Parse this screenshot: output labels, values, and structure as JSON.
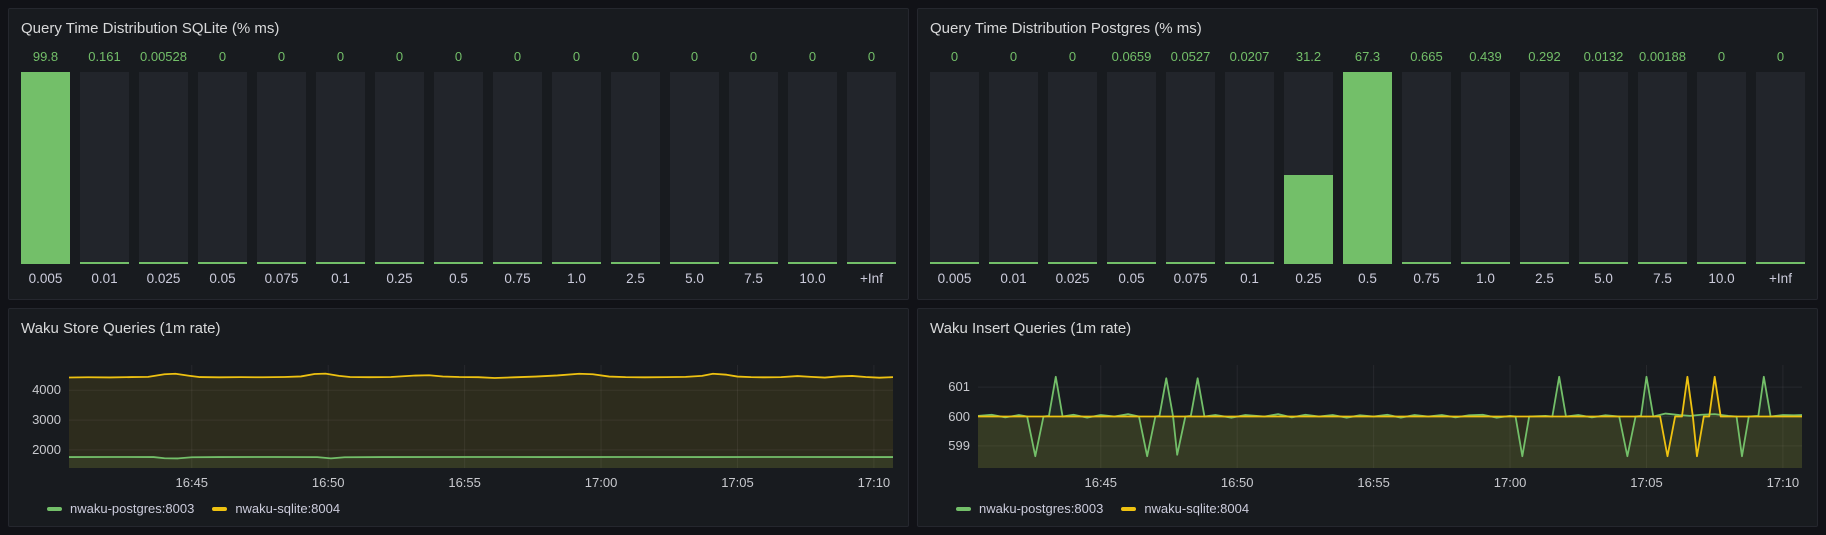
{
  "theme": {
    "page_bg": "#111217",
    "panel_bg": "#181b1f",
    "panel_border": "#25272e",
    "title_color": "#d8d9da",
    "axis_text": "#c8c9ce",
    "grid_color": "rgba(204,204,220,0.08)",
    "bar_background": "#22252b",
    "green": "#73bf69",
    "yellow": "#eec211"
  },
  "chart_data": [
    {
      "id": "query-time-sqlite",
      "type": "bar",
      "title": "Query Time Distribution SQLite (% ms)",
      "categories": [
        "0.005",
        "0.01",
        "0.025",
        "0.05",
        "0.075",
        "0.1",
        "0.25",
        "0.5",
        "0.75",
        "1.0",
        "2.5",
        "5.0",
        "7.5",
        "10.0",
        "+Inf"
      ],
      "values": [
        99.8,
        0.161,
        0.00528,
        0,
        0,
        0,
        0,
        0,
        0,
        0,
        0,
        0,
        0,
        0,
        0
      ],
      "value_labels": [
        "99.8",
        "0.161",
        "0.00528",
        "0",
        "0",
        "0",
        "0",
        "0",
        "0",
        "0",
        "0",
        "0",
        "0",
        "0",
        "0"
      ],
      "ylim": [
        0,
        99.8
      ],
      "bar_color": "#73bf69",
      "value_text_color": "#73bf69"
    },
    {
      "id": "query-time-postgres",
      "type": "bar",
      "title": "Query Time Distribution Postgres (% ms)",
      "categories": [
        "0.005",
        "0.01",
        "0.025",
        "0.05",
        "0.075",
        "0.1",
        "0.25",
        "0.5",
        "0.75",
        "1.0",
        "2.5",
        "5.0",
        "7.5",
        "10.0",
        "+Inf"
      ],
      "values": [
        0,
        0,
        0,
        0.0659,
        0.0527,
        0.0207,
        31.2,
        67.3,
        0.665,
        0.439,
        0.292,
        0.0132,
        0.00188,
        0,
        0
      ],
      "value_labels": [
        "0",
        "0",
        "0",
        "0.0659",
        "0.0527",
        "0.0207",
        "31.2",
        "67.3",
        "0.665",
        "0.439",
        "0.292",
        "0.0132",
        "0.00188",
        "0",
        "0"
      ],
      "ylim": [
        0,
        67.3
      ],
      "bar_color": "#73bf69",
      "value_text_color": "#73bf69"
    },
    {
      "id": "waku-store-queries",
      "type": "line",
      "title": "Waku Store Queries (1m rate)",
      "xlim_minutes_after_1640": [
        0.5,
        30.7
      ],
      "ylim": [
        1390,
        4850
      ],
      "y_ticks": [
        {
          "v": 4000,
          "label": "4000"
        },
        {
          "v": 3000,
          "label": "3000"
        },
        {
          "v": 2000,
          "label": "2000"
        }
      ],
      "x_ticks": [
        {
          "m": 5,
          "label": "16:45"
        },
        {
          "m": 10,
          "label": "16:50"
        },
        {
          "m": 15,
          "label": "16:55"
        },
        {
          "m": 20,
          "label": "17:00"
        },
        {
          "m": 25,
          "label": "17:05"
        },
        {
          "m": 30,
          "label": "17:10"
        }
      ],
      "legend_position": "bottom",
      "series": [
        {
          "name": "nwaku-postgres:8003",
          "color": "#73bf69",
          "points": [
            [
              0.5,
              1758
            ],
            [
              2,
              1760
            ],
            [
              3.6,
              1758
            ],
            [
              4,
              1718
            ],
            [
              4.5,
              1712
            ],
            [
              5,
              1752
            ],
            [
              6,
              1758
            ],
            [
              8,
              1760
            ],
            [
              9.6,
              1756
            ],
            [
              10.1,
              1714
            ],
            [
              10.6,
              1752
            ],
            [
              12,
              1758
            ],
            [
              15,
              1760
            ],
            [
              18,
              1758
            ],
            [
              21,
              1760
            ],
            [
              24,
              1758
            ],
            [
              27,
              1760
            ],
            [
              30.7,
              1758
            ]
          ]
        },
        {
          "name": "nwaku-sqlite:8004",
          "color": "#eec211",
          "points": [
            [
              0.5,
              4430
            ],
            [
              1.2,
              4438
            ],
            [
              2,
              4432
            ],
            [
              2.8,
              4444
            ],
            [
              3.4,
              4452
            ],
            [
              4,
              4540
            ],
            [
              4.4,
              4556
            ],
            [
              4.9,
              4490
            ],
            [
              5.3,
              4444
            ],
            [
              6,
              4436
            ],
            [
              6.8,
              4442
            ],
            [
              7.6,
              4438
            ],
            [
              8.4,
              4448
            ],
            [
              9,
              4466
            ],
            [
              9.5,
              4548
            ],
            [
              9.9,
              4560
            ],
            [
              10.4,
              4486
            ],
            [
              10.8,
              4448
            ],
            [
              11.5,
              4440
            ],
            [
              12.3,
              4446
            ],
            [
              13.2,
              4496
            ],
            [
              13.7,
              4506
            ],
            [
              14.2,
              4464
            ],
            [
              14.8,
              4446
            ],
            [
              15.5,
              4440
            ],
            [
              16.1,
              4414
            ],
            [
              16.8,
              4436
            ],
            [
              17.6,
              4462
            ],
            [
              18.4,
              4500
            ],
            [
              19.2,
              4556
            ],
            [
              19.7,
              4540
            ],
            [
              20.3,
              4462
            ],
            [
              20.9,
              4442
            ],
            [
              21.6,
              4436
            ],
            [
              22.4,
              4442
            ],
            [
              23.1,
              4452
            ],
            [
              23.7,
              4486
            ],
            [
              24.1,
              4556
            ],
            [
              24.6,
              4524
            ],
            [
              25,
              4462
            ],
            [
              25.5,
              4442
            ],
            [
              26,
              4436
            ],
            [
              26.6,
              4442
            ],
            [
              27.2,
              4478
            ],
            [
              27.7,
              4452
            ],
            [
              28.2,
              4428
            ],
            [
              28.7,
              4466
            ],
            [
              29.2,
              4482
            ],
            [
              29.7,
              4446
            ],
            [
              30.2,
              4424
            ],
            [
              30.7,
              4442
            ]
          ]
        }
      ]
    },
    {
      "id": "waku-insert-queries",
      "type": "line",
      "title": "Waku Insert Queries (1m rate)",
      "xlim_minutes_after_1640": [
        0.5,
        30.7
      ],
      "ylim": [
        598.25,
        601.75
      ],
      "y_ticks": [
        {
          "v": 601,
          "label": "601"
        },
        {
          "v": 600,
          "label": "600"
        },
        {
          "v": 599,
          "label": "599"
        }
      ],
      "x_ticks": [
        {
          "m": 5,
          "label": "16:45"
        },
        {
          "m": 10,
          "label": "16:50"
        },
        {
          "m": 15,
          "label": "16:55"
        },
        {
          "m": 20,
          "label": "17:00"
        },
        {
          "m": 25,
          "label": "17:05"
        },
        {
          "m": 30,
          "label": "17:10"
        }
      ],
      "legend_position": "bottom",
      "series": [
        {
          "name": "nwaku-postgres:8003",
          "color": "#73bf69",
          "points": [
            [
              0.5,
              600.02
            ],
            [
              1,
              600.06
            ],
            [
              1.5,
              599.97
            ],
            [
              2,
              600.05
            ],
            [
              2.3,
              600
            ],
            [
              2.6,
              598.65
            ],
            [
              2.9,
              600
            ],
            [
              3.1,
              600.02
            ],
            [
              3.35,
              601.35
            ],
            [
              3.6,
              600
            ],
            [
              4,
              600.06
            ],
            [
              4.5,
              599.96
            ],
            [
              5,
              600.05
            ],
            [
              5.5,
              600
            ],
            [
              6,
              600.08
            ],
            [
              6.4,
              600
            ],
            [
              6.7,
              598.65
            ],
            [
              7,
              600
            ],
            [
              7.15,
              600.02
            ],
            [
              7.4,
              601.3
            ],
            [
              7.65,
              600
            ],
            [
              7.8,
              598.7
            ],
            [
              8.1,
              600
            ],
            [
              8.3,
              600.02
            ],
            [
              8.55,
              601.3
            ],
            [
              8.8,
              600
            ],
            [
              9.2,
              600.05
            ],
            [
              9.8,
              599.96
            ],
            [
              10.3,
              600.05
            ],
            [
              11,
              600
            ],
            [
              11.5,
              600.08
            ],
            [
              12,
              599.97
            ],
            [
              12.5,
              600.06
            ],
            [
              13,
              600
            ],
            [
              13.5,
              600.05
            ],
            [
              14,
              599.96
            ],
            [
              14.5,
              600.04
            ],
            [
              15,
              600
            ],
            [
              15.5,
              600.06
            ],
            [
              16,
              599.96
            ],
            [
              16.5,
              600.05
            ],
            [
              17,
              600
            ],
            [
              17.5,
              600.05
            ],
            [
              18,
              599.97
            ],
            [
              18.5,
              600.04
            ],
            [
              19,
              600.06
            ],
            [
              19.5,
              599.96
            ],
            [
              20,
              600.02
            ],
            [
              20.2,
              600
            ],
            [
              20.45,
              598.65
            ],
            [
              20.7,
              600
            ],
            [
              21.3,
              600.02
            ],
            [
              21.55,
              600
            ],
            [
              21.8,
              601.35
            ],
            [
              22.05,
              600
            ],
            [
              22.5,
              600.05
            ],
            [
              23,
              599.97
            ],
            [
              23.5,
              600.04
            ],
            [
              24,
              600
            ],
            [
              24.3,
              598.65
            ],
            [
              24.6,
              600
            ],
            [
              24.8,
              600.02
            ],
            [
              25,
              601.35
            ],
            [
              25.25,
              600
            ],
            [
              25.7,
              600.1
            ],
            [
              26.2,
              600.05
            ],
            [
              26.6,
              600.02
            ],
            [
              27,
              600.06
            ],
            [
              27.5,
              600.08
            ],
            [
              28,
              600.02
            ],
            [
              28.3,
              600
            ],
            [
              28.5,
              598.65
            ],
            [
              28.75,
              600
            ],
            [
              29.1,
              600.02
            ],
            [
              29.3,
              601.35
            ],
            [
              29.55,
              600
            ],
            [
              30,
              600.05
            ],
            [
              30.4,
              600.04
            ],
            [
              30.7,
              600.05
            ]
          ]
        },
        {
          "name": "nwaku-sqlite:8004",
          "color": "#eec211",
          "points": [
            [
              0.5,
              600
            ],
            [
              5,
              600
            ],
            [
              10,
              600
            ],
            [
              15,
              600
            ],
            [
              20,
              600
            ],
            [
              25,
              600
            ],
            [
              25.5,
              600
            ],
            [
              25.77,
              598.65
            ],
            [
              26.05,
              600
            ],
            [
              26.3,
              600
            ],
            [
              26.5,
              601.35
            ],
            [
              26.7,
              600
            ],
            [
              26.85,
              598.65
            ],
            [
              27.1,
              600
            ],
            [
              27.3,
              600
            ],
            [
              27.5,
              601.35
            ],
            [
              27.72,
              600
            ],
            [
              28.5,
              600
            ],
            [
              30.7,
              600
            ]
          ]
        }
      ]
    }
  ]
}
